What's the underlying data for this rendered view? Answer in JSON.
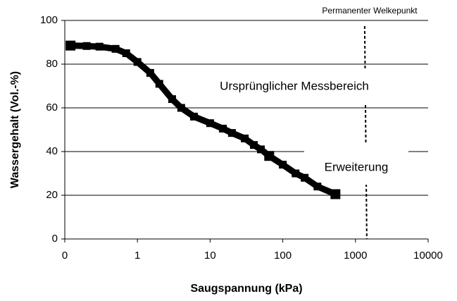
{
  "chart_data": {
    "type": "scatter",
    "x_label": "Saugspannung (kPa)",
    "y_label": "Wassergehalt (Vol.-%)",
    "log_x": true,
    "grid": true,
    "color": "#000000",
    "x": [
      0.12,
      0.2,
      0.3,
      0.5,
      0.7,
      1,
      1.5,
      2,
      3,
      4,
      6,
      10,
      15,
      20,
      30,
      40,
      50,
      65,
      100,
      150,
      200,
      300,
      530
    ],
    "values": [
      88.5,
      88.3,
      88,
      87,
      85,
      81,
      76,
      71,
      64,
      60,
      56,
      53,
      50.5,
      48.5,
      46,
      43,
      41,
      38,
      34,
      30,
      28,
      24,
      20.5
    ],
    "xlim": [
      0.1,
      10000
    ],
    "xticks": [
      {
        "value": 0.1,
        "label": "0"
      },
      1,
      10,
      100,
      1000,
      10000
    ],
    "ylim": [
      0,
      100
    ],
    "yticks": [
      0,
      20,
      40,
      60,
      80,
      100
    ],
    "vline": {
      "x": 1400,
      "label": "Permanenter Welkepunkt"
    },
    "annotations": [
      "Ursprünglicher Messbereich",
      "Erweiterung"
    ]
  }
}
